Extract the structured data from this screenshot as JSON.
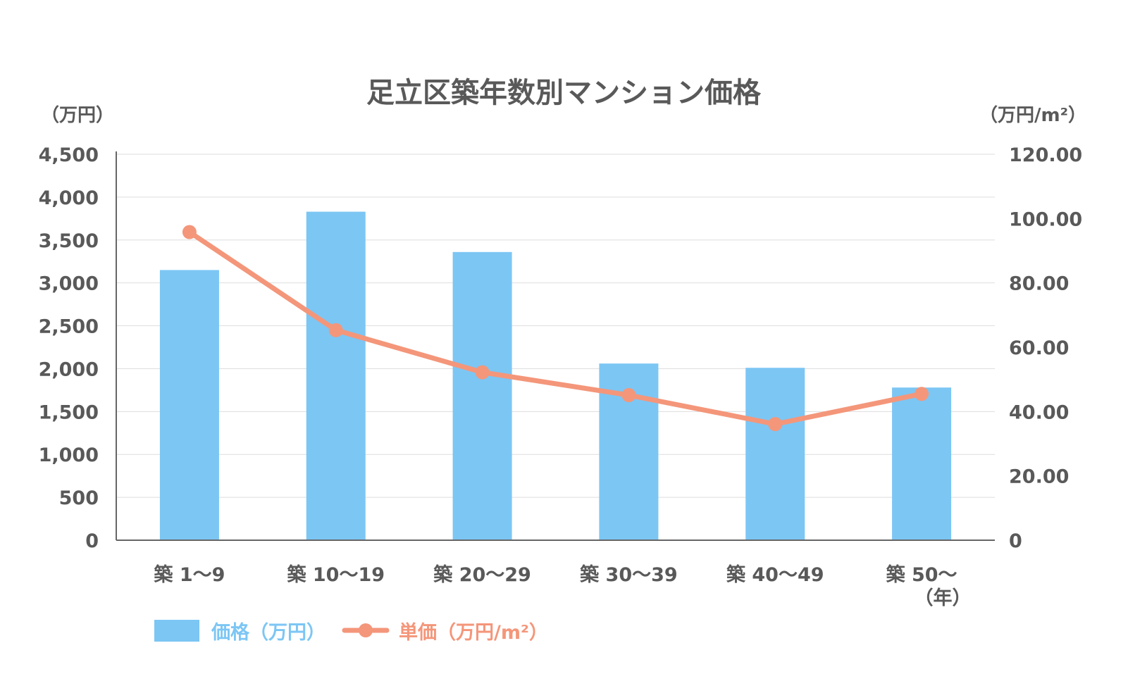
{
  "chart_data": {
    "type": "bar",
    "title": "足立区築年数別マンション価格",
    "categories": [
      "築 1〜9",
      "築 10〜19",
      "築 20〜29",
      "築 30〜39",
      "築 40〜49",
      "築 50〜"
    ],
    "x_unit_label": "（年）",
    "y_left": {
      "label": "（万円）",
      "range": [
        0,
        4500
      ],
      "ticks": [
        0,
        500,
        1000,
        1500,
        2000,
        2500,
        3000,
        3500,
        4000,
        4500
      ],
      "tick_labels": [
        "0",
        "500",
        "1,000",
        "1,500",
        "2,000",
        "2,500",
        "3,000",
        "3,500",
        "4,000",
        "4,500"
      ]
    },
    "y_right": {
      "label": "（万円/m²）",
      "range": [
        0,
        120
      ],
      "ticks": [
        0,
        20,
        40,
        60,
        80,
        100,
        120
      ],
      "tick_labels": [
        "0",
        "20.00",
        "40.00",
        "60.00",
        "80.00",
        "100.00",
        "120.00"
      ]
    },
    "series": [
      {
        "name": "価格（万円）",
        "type": "bar",
        "axis": "left",
        "color": "#7cc6f4",
        "values": [
          3150,
          3830,
          3360,
          2060,
          2010,
          1780
        ]
      },
      {
        "name": "単価（万円/m²）",
        "type": "line",
        "axis": "right",
        "color": "#f4967a",
        "values": [
          95.8,
          65.3,
          52.2,
          45.1,
          36.1,
          45.5
        ]
      }
    ],
    "grid": true,
    "legend": "bottom-left"
  }
}
